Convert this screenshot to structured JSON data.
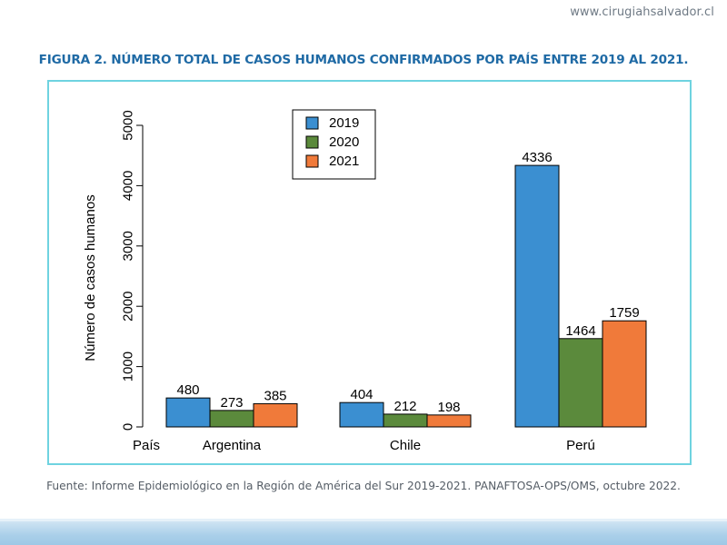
{
  "header": {
    "site_url": "www.cirugiahsalvador.cl",
    "figure_title": "FIGURA 2. NÚMERO TOTAL DE CASOS HUMANOS CONFIRMADOS POR PAÍS ENTRE 2019 AL 2021."
  },
  "footer": {
    "source": "Fuente: Informe Epidemiológico en la Región de América del Sur 2019-2021. PANAFTOSA-OPS/OMS, octubre 2022."
  },
  "colors": {
    "accent_title": "#1f6aa5",
    "frame_border": "#6fd3e0",
    "series_2019": "#3b8fd1",
    "series_2020": "#5b8a3c",
    "series_2021": "#f07a3a"
  },
  "chart_data": {
    "type": "bar",
    "title": "",
    "xlabel": "País",
    "ylabel": "Número de casos humanos",
    "categories": [
      "Argentina",
      "Chile",
      "Perú"
    ],
    "series": [
      {
        "name": "2019",
        "values": [
          480,
          404,
          4336
        ],
        "color": "#3b8fd1"
      },
      {
        "name": "2020",
        "values": [
          273,
          212,
          1464
        ],
        "color": "#5b8a3c"
      },
      {
        "name": "2021",
        "values": [
          385,
          198,
          1759
        ],
        "color": "#f07a3a"
      }
    ],
    "ylim": [
      0,
      5000
    ],
    "yticks": [
      0,
      1000,
      2000,
      3000,
      4000,
      5000
    ],
    "ytick_labels": [
      "0",
      "1000",
      "2000",
      "3000",
      "4000",
      "5000"
    ],
    "legend": [
      "2019",
      "2020",
      "2021"
    ],
    "legend_position": "top-center",
    "grid": false,
    "data_labels": true
  }
}
